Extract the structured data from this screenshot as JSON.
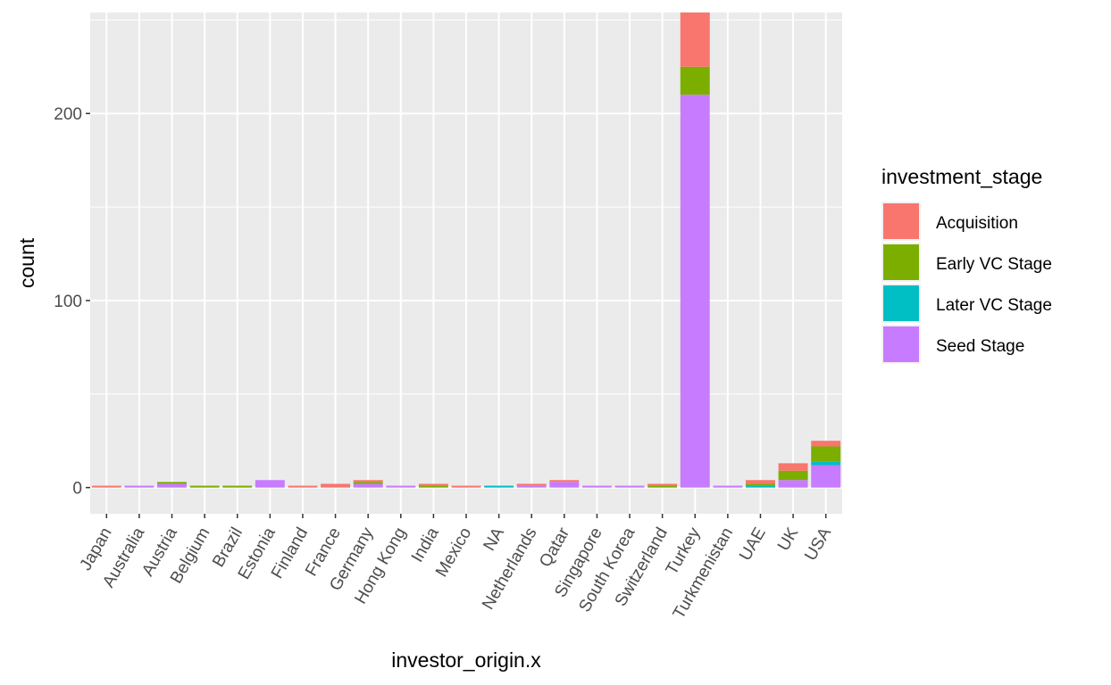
{
  "chart_data": {
    "type": "bar",
    "stacked": true,
    "title": "",
    "xlabel": "investor_origin.x",
    "ylabel": "count",
    "ylim": [
      -14,
      254
    ],
    "yticks": [
      0,
      100,
      200
    ],
    "grid": true,
    "legend_placement": "right",
    "legend_title": "investment_stage",
    "categories": [
      "Japan",
      "Australia",
      "Austria",
      "Belgium",
      "Brazil",
      "Estonia",
      "Finland",
      "France",
      "Germany",
      "Hong Kong",
      "India",
      "Mexico",
      "NA",
      "Netherlands",
      "Qatar",
      "Singapore",
      "South Korea",
      "Switzerland",
      "Turkey",
      "Turkmenistan",
      "UAE",
      "UK",
      "USA"
    ],
    "series": [
      {
        "name": "Seed Stage",
        "color": "#C77CFF",
        "values": [
          0,
          1,
          2,
          0,
          0,
          4,
          0,
          0,
          2,
          1,
          0,
          0,
          0,
          1,
          3,
          1,
          1,
          0,
          210,
          1,
          0,
          4,
          12
        ]
      },
      {
        "name": "Later VC Stage",
        "color": "#00BFC4",
        "values": [
          0,
          0,
          0,
          0,
          0,
          0,
          0,
          0,
          0,
          0,
          0,
          0,
          1,
          0,
          0,
          0,
          0,
          0,
          0,
          0,
          1,
          0,
          2
        ]
      },
      {
        "name": "Early VC Stage",
        "color": "#7CAE00",
        "values": [
          0,
          0,
          1,
          1,
          1,
          0,
          0,
          0,
          1,
          0,
          1,
          0,
          0,
          0,
          0,
          0,
          0,
          1,
          15,
          0,
          1,
          5,
          8
        ]
      },
      {
        "name": "Acquisition",
        "color": "#F8766D",
        "values": [
          1,
          0,
          0,
          0,
          0,
          0,
          1,
          2,
          1,
          0,
          1,
          1,
          0,
          1,
          1,
          0,
          0,
          1,
          29,
          0,
          2,
          4,
          3
        ]
      }
    ],
    "legend_order": [
      "Acquisition",
      "Early VC Stage",
      "Later VC Stage",
      "Seed Stage"
    ],
    "panel_background": "#EBEBEB",
    "grid_color": "#FFFFFF"
  }
}
